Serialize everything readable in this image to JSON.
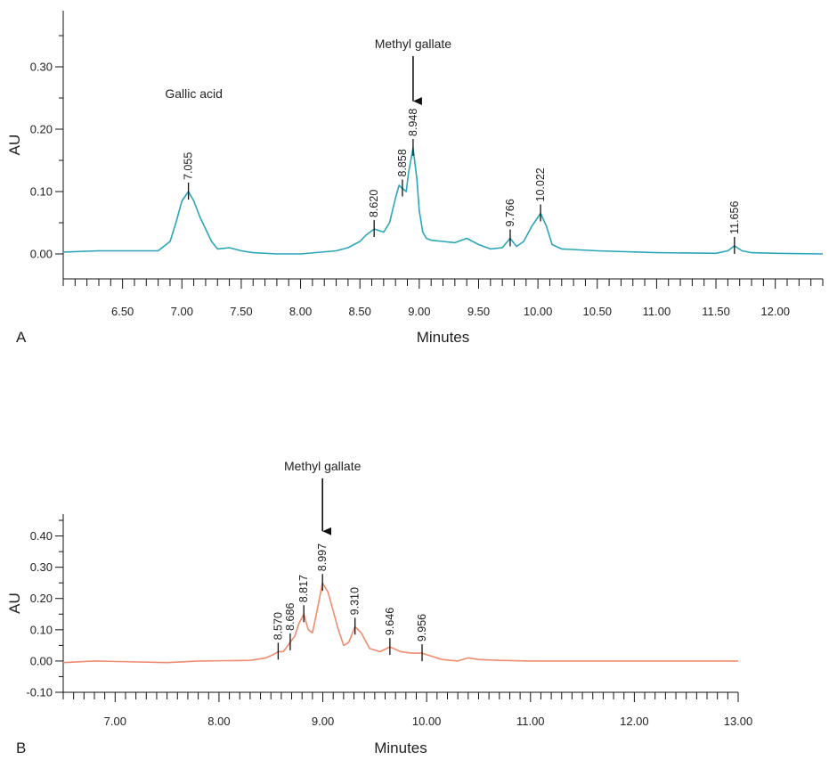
{
  "chart_data": [
    {
      "type": "line",
      "panel_label": "A",
      "xlabel": "Minutes",
      "ylabel": "AU",
      "xlim": [
        6.0,
        12.4
      ],
      "ylim": [
        -0.04,
        0.39
      ],
      "x_ticks": [
        "6.50",
        "7.00",
        "7.50",
        "8.00",
        "8.50",
        "9.00",
        "9.50",
        "10.00",
        "10.50",
        "11.00",
        "11.50",
        "12.00"
      ],
      "y_ticks": [
        "0.00",
        "0.10",
        "0.20",
        "0.30"
      ],
      "line_color": "#2aa6b8",
      "series": [
        {
          "x": [
            6.0,
            6.3,
            6.8,
            6.9,
            6.95,
            7.0,
            7.055,
            7.1,
            7.15,
            7.2,
            7.25,
            7.3,
            7.4,
            7.5,
            7.6,
            7.8,
            8.0,
            8.3,
            8.4,
            8.5,
            8.55,
            8.62,
            8.7,
            8.75,
            8.8,
            8.83,
            8.858,
            8.89,
            8.91,
            8.948,
            8.98,
            9.0,
            9.03,
            9.06,
            9.1,
            9.2,
            9.3,
            9.4,
            9.5,
            9.6,
            9.7,
            9.766,
            9.82,
            9.88,
            9.95,
            10.022,
            10.07,
            10.12,
            10.2,
            10.5,
            11.0,
            11.5,
            11.6,
            11.656,
            11.72,
            11.8,
            12.0,
            12.4
          ],
          "y": [
            0.003,
            0.005,
            0.005,
            0.02,
            0.05,
            0.085,
            0.1,
            0.085,
            0.06,
            0.04,
            0.02,
            0.008,
            0.01,
            0.005,
            0.002,
            0.0,
            0.0,
            0.005,
            0.01,
            0.02,
            0.03,
            0.04,
            0.035,
            0.05,
            0.09,
            0.11,
            0.105,
            0.1,
            0.13,
            0.17,
            0.12,
            0.07,
            0.035,
            0.025,
            0.022,
            0.02,
            0.018,
            0.025,
            0.015,
            0.008,
            0.01,
            0.025,
            0.012,
            0.02,
            0.045,
            0.065,
            0.045,
            0.015,
            0.008,
            0.005,
            0.002,
            0.001,
            0.005,
            0.013,
            0.005,
            0.002,
            0.001,
            0.0
          ]
        }
      ],
      "peak_labels": [
        {
          "x": 7.055,
          "y": 0.1,
          "label": "7.055"
        },
        {
          "x": 8.62,
          "y": 0.04,
          "label": "8.620"
        },
        {
          "x": 8.858,
          "y": 0.105,
          "label": "8.858"
        },
        {
          "x": 8.948,
          "y": 0.17,
          "label": "8.948"
        },
        {
          "x": 9.766,
          "y": 0.025,
          "label": "9.766"
        },
        {
          "x": 10.022,
          "y": 0.065,
          "label": "10.022"
        },
        {
          "x": 11.656,
          "y": 0.013,
          "label": "11.656"
        }
      ],
      "annotations": [
        {
          "text": "Gallic acid",
          "x": 7.1,
          "y": 0.25,
          "arrow": false
        },
        {
          "text": "Methyl gallate",
          "x": 8.948,
          "y": 0.33,
          "arrow": true,
          "arrow_to_y": 0.245
        }
      ]
    },
    {
      "type": "line",
      "panel_label": "B",
      "xlabel": "Minutes",
      "ylabel": "AU",
      "xlim": [
        6.5,
        13.0
      ],
      "ylim": [
        -0.1,
        0.47
      ],
      "x_ticks": [
        "7.00",
        "8.00",
        "9.00",
        "10.00",
        "11.00",
        "12.00",
        "13.00"
      ],
      "y_ticks": [
        "-0.10",
        "0.00",
        "0.10",
        "0.20",
        "0.30",
        "0.40"
      ],
      "line_color": "#f08b6e",
      "series": [
        {
          "x": [
            6.5,
            6.8,
            7.5,
            7.8,
            8.3,
            8.45,
            8.52,
            8.57,
            8.62,
            8.686,
            8.73,
            8.77,
            8.817,
            8.86,
            8.9,
            8.95,
            8.997,
            9.05,
            9.1,
            9.15,
            9.2,
            9.25,
            9.31,
            9.37,
            9.45,
            9.55,
            9.646,
            9.75,
            9.85,
            9.956,
            10.05,
            10.15,
            10.3,
            10.4,
            10.5,
            10.7,
            11.0,
            12.0,
            13.0
          ],
          "y": [
            -0.005,
            0.0,
            -0.005,
            0.0,
            0.002,
            0.01,
            0.02,
            0.03,
            0.03,
            0.06,
            0.08,
            0.12,
            0.15,
            0.1,
            0.09,
            0.17,
            0.25,
            0.22,
            0.16,
            0.1,
            0.05,
            0.06,
            0.11,
            0.09,
            0.04,
            0.03,
            0.045,
            0.03,
            0.025,
            0.025,
            0.015,
            0.005,
            0.0,
            0.01,
            0.005,
            0.002,
            0.0,
            0.0,
            0.0
          ]
        }
      ],
      "peak_labels": [
        {
          "x": 8.57,
          "y": 0.03,
          "label": "8.570"
        },
        {
          "x": 8.686,
          "y": 0.06,
          "label": "8.686"
        },
        {
          "x": 8.817,
          "y": 0.15,
          "label": "8.817"
        },
        {
          "x": 8.997,
          "y": 0.25,
          "label": "8.997"
        },
        {
          "x": 9.31,
          "y": 0.11,
          "label": "9.310"
        },
        {
          "x": 9.646,
          "y": 0.045,
          "label": "9.646"
        },
        {
          "x": 9.956,
          "y": 0.025,
          "label": "9.956"
        }
      ],
      "annotations": [
        {
          "text": "Methyl gallate",
          "x": 8.997,
          "y": 0.61,
          "arrow": true,
          "arrow_to_y": 0.415
        }
      ]
    }
  ]
}
